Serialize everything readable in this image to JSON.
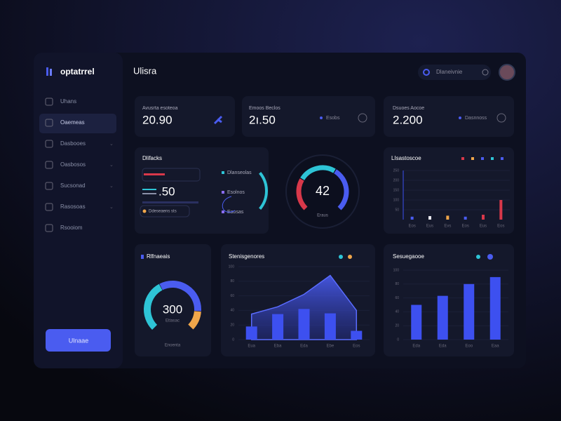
{
  "sidebar": {
    "brand": "optatrrel",
    "nav": [
      "Uhans",
      "Oaemeas",
      "Dasbooes",
      "Oasbosos",
      "Sucsonad",
      "Rasosoas",
      "Rsooiom"
    ],
    "button": "Ulnaae"
  },
  "header": {
    "title": "Ulisra",
    "search": "Dlaneivnie"
  },
  "stats": [
    {
      "label": "Avusrta esoteoa",
      "value": "20.90"
    },
    {
      "label": "Emoos Beclos",
      "value": "2ı.50",
      "note": "Esobs"
    },
    {
      "label": "Dsuoes Aocoe",
      "value": "2.200",
      "note": "Dasnnoss"
    }
  ],
  "kpi": {
    "title": "Dlifacks",
    "value": ".50",
    "chip": "Ddeseaens sts",
    "legend": [
      "Dlanseolas",
      "Esolnos",
      "Eaosas"
    ]
  },
  "gauge": {
    "value": "42",
    "label": "Eraus"
  },
  "mini_bar": {
    "type": "bar",
    "title": "LIsastoscoe",
    "categories": [
      "Eos",
      "Eus",
      "Evs",
      "Eos",
      "Eus",
      "Eos"
    ],
    "values": [
      15,
      18,
      20,
      15,
      25,
      100
    ],
    "colors": [
      "#4a5cf0",
      "#e8e8f0",
      "#f0a64a",
      "#4a5cf0",
      "#d8384a",
      "#d8384a"
    ],
    "ylim": [
      0,
      250
    ],
    "yticks": [
      50,
      100,
      150,
      200,
      250
    ]
  },
  "donut": {
    "title": "Rlfnaeais",
    "value": "300",
    "label": "Ettasac",
    "sub": "Enoenta",
    "segments": [
      40,
      45,
      15
    ],
    "colors": [
      "#2ec4d6",
      "#4a5cf0",
      "#f0a64a"
    ]
  },
  "area_bar": {
    "type": "bar",
    "title": "Stenisgenores",
    "categories": [
      "Eua",
      "Eba",
      "Eda",
      "Ebe",
      "Eos"
    ],
    "values": [
      18,
      35,
      42,
      36,
      12
    ],
    "area": [
      35,
      45,
      62,
      88,
      40
    ],
    "ylim": [
      0,
      100
    ],
    "yticks": [
      0,
      20,
      40,
      60,
      80,
      100
    ]
  },
  "bar": {
    "type": "bar",
    "title": "Sesuegaooe",
    "categories": [
      "Eda",
      "Eda",
      "Eoo",
      "Eaa"
    ],
    "values": [
      50,
      63,
      80,
      90
    ],
    "ylim": [
      0,
      100
    ],
    "yticks": [
      0,
      20,
      40,
      60,
      80,
      100
    ]
  }
}
